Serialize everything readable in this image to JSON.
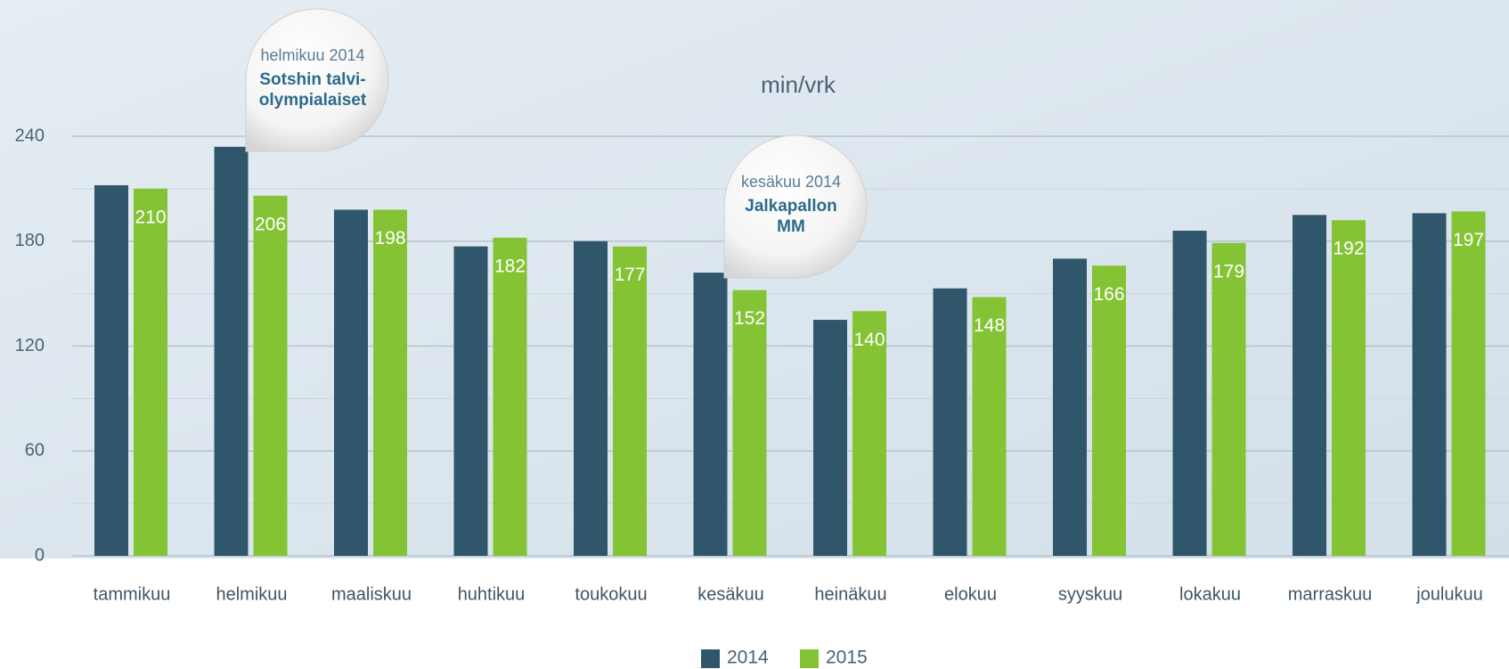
{
  "chart_data": {
    "type": "bar",
    "title": "min/vrk",
    "categories": [
      "tammikuu",
      "helmikuu",
      "maaliskuu",
      "huhtikuu",
      "toukokuu",
      "kesäkuu",
      "heinäkuu",
      "elokuu",
      "syyskuu",
      "lokakuu",
      "marraskuu",
      "joulukuu"
    ],
    "series": [
      {
        "name": "2014",
        "color": "#2f566b",
        "values": [
          212,
          234,
          198,
          177,
          180,
          162,
          135,
          153,
          170,
          186,
          195,
          196
        ]
      },
      {
        "name": "2015",
        "color": "#84c334",
        "values": [
          210,
          206,
          198,
          182,
          177,
          152,
          140,
          148,
          166,
          179,
          192,
          197
        ],
        "show_labels": true
      }
    ],
    "ylim": [
      0,
      240
    ],
    "yticks": [
      0,
      60,
      120,
      180,
      240
    ],
    "grid": true,
    "legend": "bottom",
    "annotations": [
      {
        "category": 1,
        "label": "helmikuu 2014",
        "text": [
          "Sotshin talvi-",
          "olympialaiset"
        ]
      },
      {
        "category": 5,
        "label": "kesäkuu 2014",
        "text": [
          "Jalkapallon",
          "MM"
        ]
      }
    ]
  }
}
